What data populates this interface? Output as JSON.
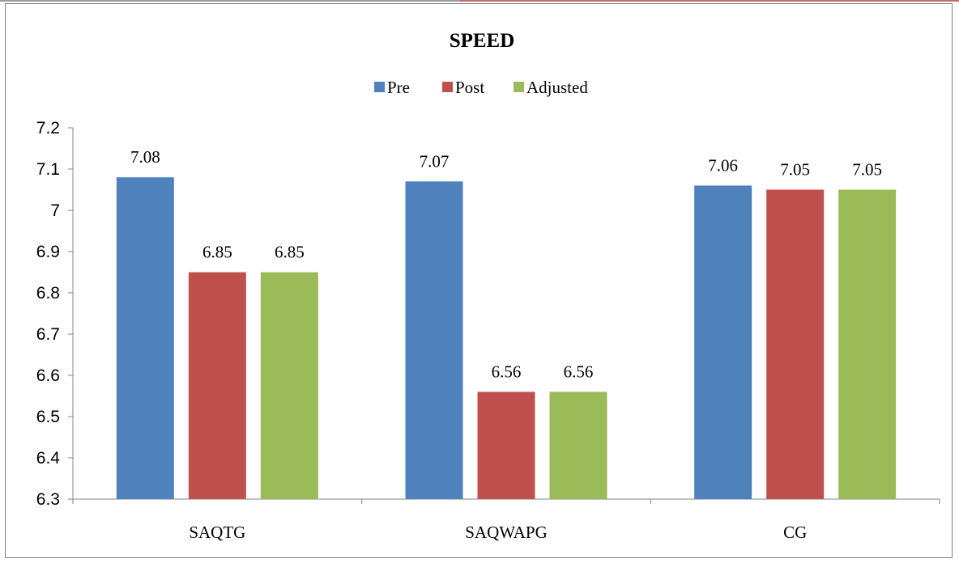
{
  "chart_data": {
    "type": "bar",
    "title": "SPEED",
    "categories": [
      "SAQTG",
      "SAQWAPG",
      "CG"
    ],
    "series": [
      {
        "name": "Pre",
        "values": [
          7.08,
          7.07,
          7.06
        ],
        "color": "#4f81bd"
      },
      {
        "name": "Post",
        "values": [
          6.85,
          6.56,
          7.05
        ],
        "color": "#c0504d"
      },
      {
        "name": "Adjusted",
        "values": [
          6.85,
          6.56,
          7.05
        ],
        "color": "#9bbb59"
      }
    ],
    "ylim": [
      6.3,
      7.2
    ],
    "yticks": [
      "6.3",
      "6.4",
      "6.5",
      "6.6",
      "6.7",
      "6.8",
      "6.9",
      "7",
      "7.1",
      "7.2"
    ],
    "data_labels": [
      [
        "7.08",
        "7.07",
        "7.06"
      ],
      [
        "6.85",
        "6.56",
        "7.05"
      ],
      [
        "6.85",
        "6.56",
        "7.05"
      ]
    ],
    "legend_position": "top",
    "grid": false
  }
}
